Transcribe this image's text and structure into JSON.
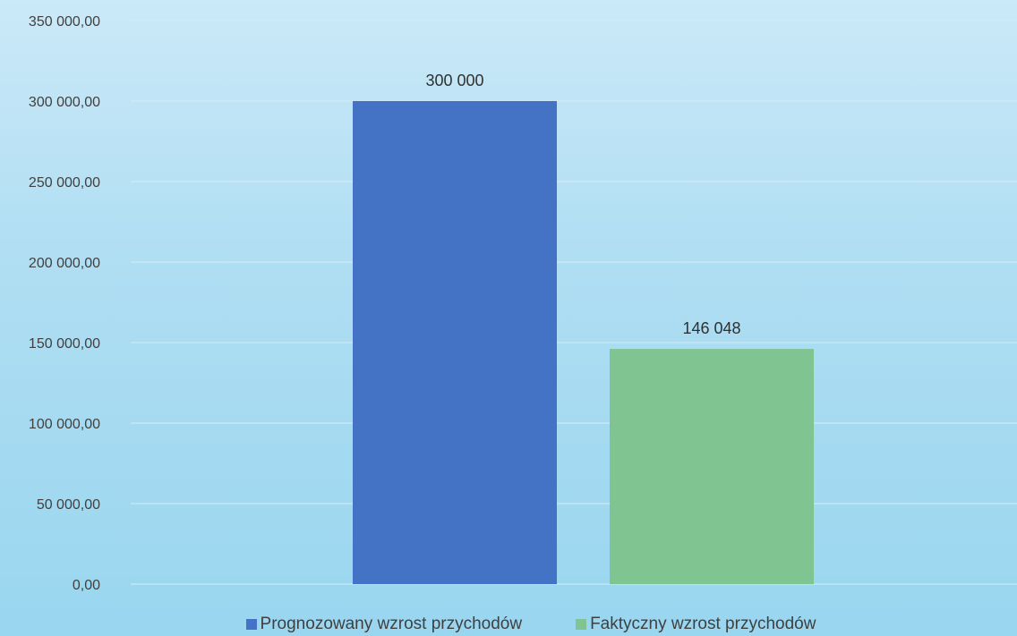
{
  "chart_data": {
    "type": "bar",
    "title": "",
    "xlabel": "",
    "ylabel": "",
    "categories": [
      "Prognozowany wzrost przychodów",
      "Faktyczny wzrost przychodów"
    ],
    "values": [
      300000,
      146048
    ],
    "data_labels": [
      "300 000",
      "146 048"
    ],
    "colors": [
      "#4472c4",
      "#7fc491"
    ],
    "ylim": [
      0,
      350000
    ],
    "yticks": [
      0,
      50000,
      100000,
      150000,
      200000,
      250000,
      300000,
      350000
    ],
    "ytick_labels": [
      "0,00",
      "50 000,00",
      "100 000,00",
      "150 000,00",
      "200 000,00",
      "250 000,00",
      "300 000,00",
      "350 000,00"
    ],
    "grid": true,
    "legend_position": "bottom",
    "legend": [
      {
        "label": "Prognozowany wzrost przychodów",
        "color": "#4472c4"
      },
      {
        "label": "Faktyczny wzrost przychodów",
        "color": "#7fc491"
      }
    ]
  }
}
